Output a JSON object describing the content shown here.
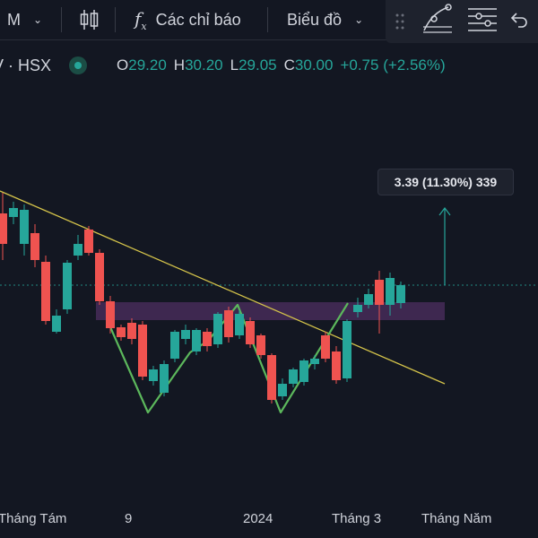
{
  "toolbar": {
    "interval": "M",
    "indicators_label": "Các chỉ báo",
    "chart_type_label": "Biểu đồ"
  },
  "symbol": {
    "exchange_text": "V · HSX"
  },
  "ohlc": {
    "o_key": "O",
    "o_val": "29.20",
    "h_key": "H",
    "h_val": "30.20",
    "l_key": "L",
    "l_val": "29.05",
    "c_key": "C",
    "c_val": "30.00",
    "change": "+0.75 (+2.56%)"
  },
  "measure": {
    "text": "3.39 (11.30%) 339"
  },
  "x_axis": {
    "labels": [
      "Tháng Tám",
      "9",
      "2024",
      "Tháng 3",
      "Tháng Năm"
    ]
  },
  "colors": {
    "up": "#26a69a",
    "down": "#ef5350",
    "trendline": "#d4c34a",
    "pattern": "#5cb85c",
    "zone": "#4a2d5c",
    "background": "#131722"
  },
  "icons": {
    "chevron": "chevron-down-icon",
    "candles": "candles-icon",
    "fx": "fx-icon",
    "drag": "drag-handle-icon",
    "node": "node-tool-icon",
    "lines": "lines-menu-icon",
    "undo": "undo-icon"
  }
}
